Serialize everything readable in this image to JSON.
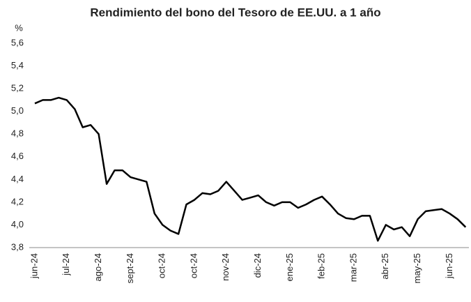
{
  "chart_data": {
    "type": "line",
    "title": "Rendimiento del bono del Tesoro de EE.UU. a 1 año",
    "y_axis_label": "%",
    "categories": [
      "jun-24",
      null,
      null,
      null,
      "jul-24",
      null,
      null,
      null,
      "ago-24",
      null,
      null,
      null,
      "sept-24",
      null,
      null,
      null,
      "oct-24",
      null,
      null,
      null,
      "oct-24",
      null,
      null,
      null,
      "nov-24",
      null,
      null,
      null,
      "dic-24",
      null,
      null,
      null,
      "ene-25",
      null,
      null,
      null,
      "feb-25",
      null,
      null,
      null,
      "mar-25",
      null,
      null,
      null,
      "abr-25",
      null,
      null,
      null,
      "may-25",
      null,
      null,
      null,
      "jun-25",
      null,
      null
    ],
    "values": [
      5.07,
      5.1,
      5.1,
      5.12,
      5.1,
      5.02,
      4.86,
      4.88,
      4.8,
      4.36,
      4.48,
      4.48,
      4.42,
      4.4,
      4.38,
      4.1,
      4.0,
      3.95,
      3.92,
      4.18,
      4.22,
      4.28,
      4.27,
      4.3,
      4.38,
      4.3,
      4.22,
      4.24,
      4.26,
      4.2,
      4.17,
      4.2,
      4.2,
      4.15,
      4.18,
      4.22,
      4.25,
      4.18,
      4.1,
      4.06,
      4.05,
      4.08,
      4.08,
      3.86,
      4.0,
      3.96,
      3.98,
      3.9,
      4.05,
      4.12,
      4.13,
      4.14,
      4.1,
      4.05,
      3.98
    ],
    "color": "#000000",
    "ylim": [
      3.8,
      5.6
    ],
    "yticks": [
      {
        "value": 3.8,
        "label": "3,8"
      },
      {
        "value": 4.0,
        "label": "4,0"
      },
      {
        "value": 4.2,
        "label": "4,2"
      },
      {
        "value": 4.4,
        "label": "4,4"
      },
      {
        "value": 4.6,
        "label": "4,6"
      },
      {
        "value": 4.8,
        "label": "4,8"
      },
      {
        "value": 5.0,
        "label": "5,0"
      },
      {
        "value": 5.2,
        "label": "5,2"
      },
      {
        "value": 5.4,
        "label": "5,4"
      },
      {
        "value": 5.6,
        "label": "5,6"
      }
    ],
    "grid": false
  }
}
